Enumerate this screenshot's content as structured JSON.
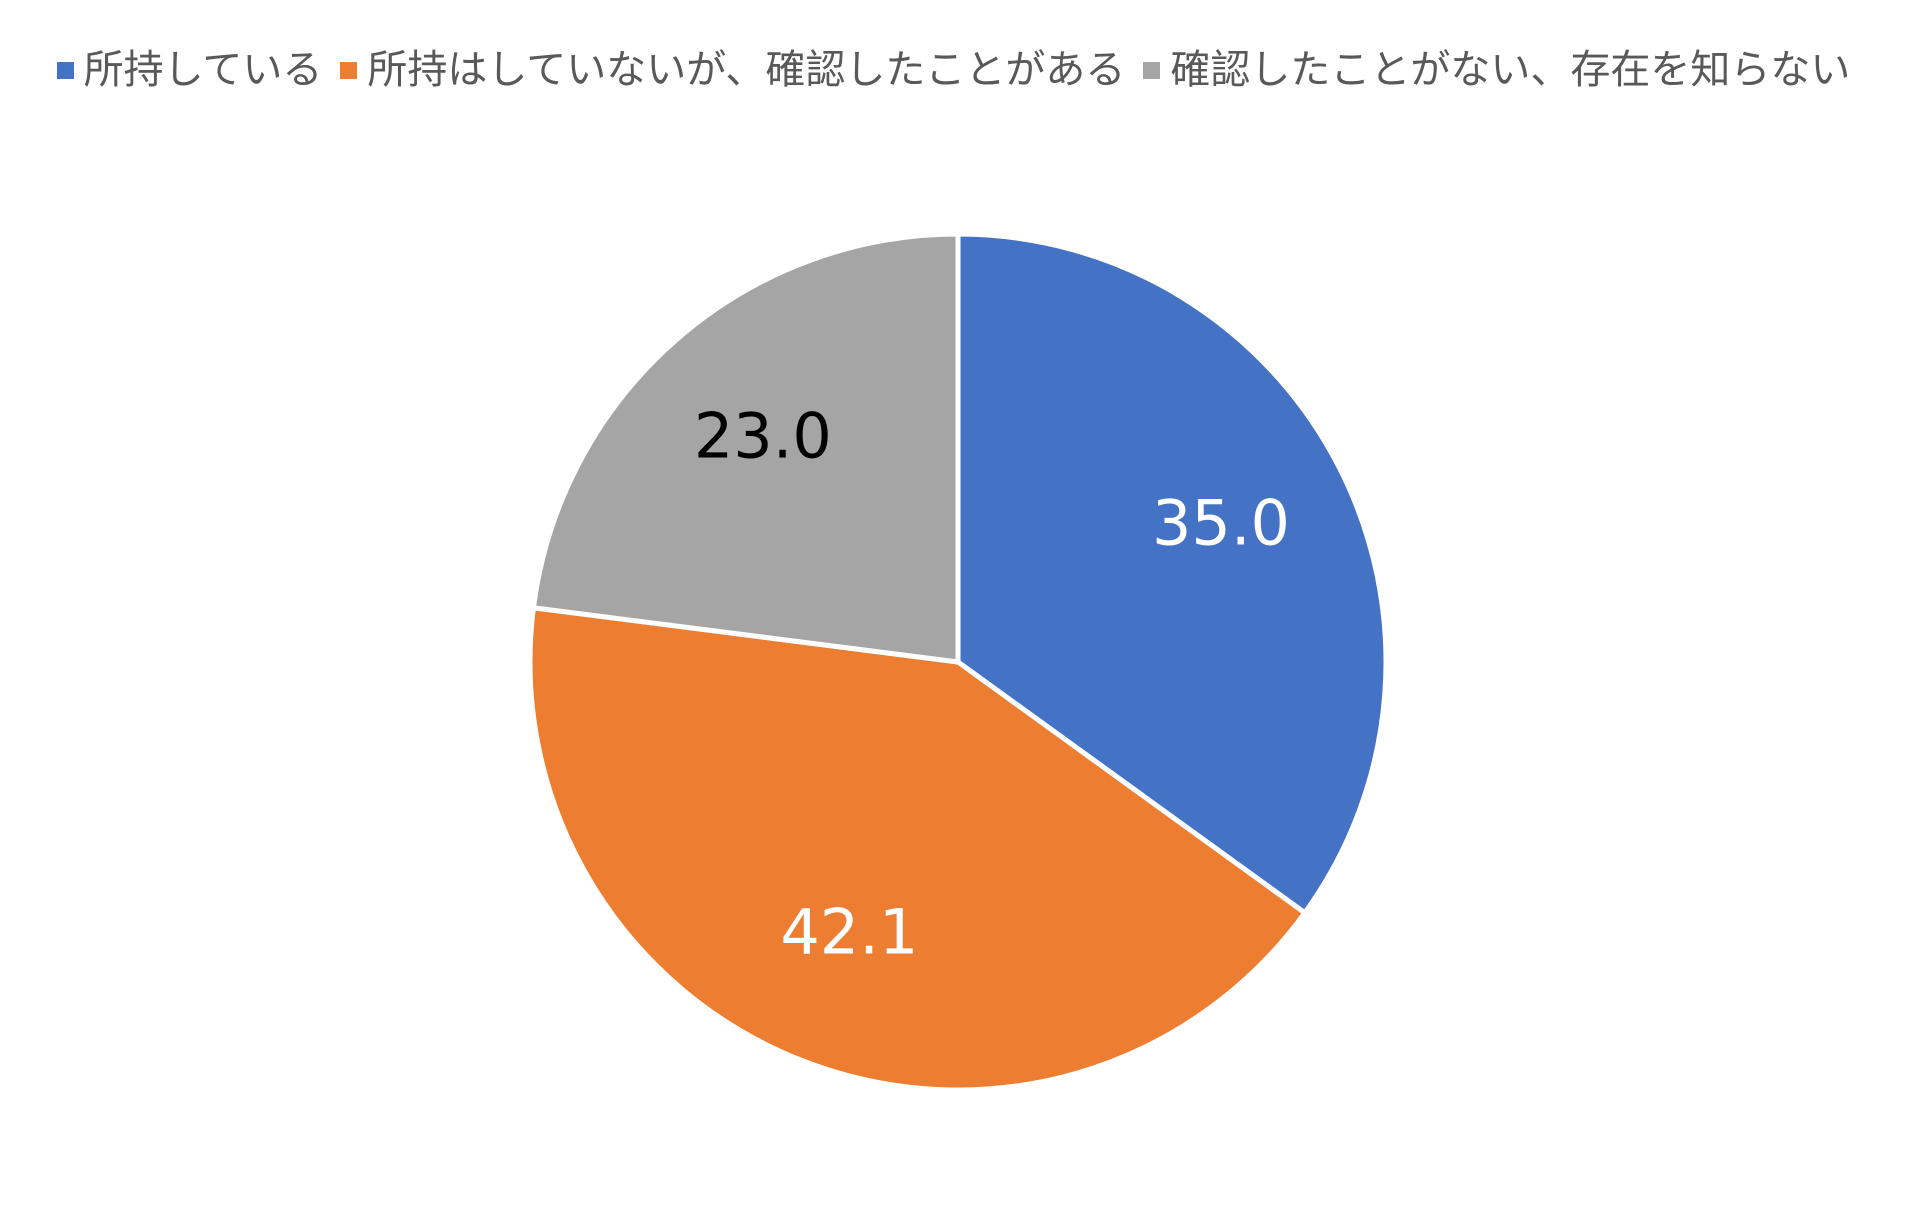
{
  "chart_data": {
    "type": "pie",
    "title": "",
    "legend_placement": "top",
    "series": [
      {
        "name": "所持している",
        "value": 35.0,
        "label": "35.0",
        "color": "#4472C4",
        "label_color": "#FFFFFF"
      },
      {
        "name": "所持はしていないが、確認したことがある",
        "value": 42.1,
        "label": "42.1",
        "color": "#ED7D31",
        "label_color": "#FFFFFF"
      },
      {
        "name": "確認したことがない、存在を知らない",
        "value": 23.0,
        "label": "23.0",
        "color": "#A5A5A5",
        "label_color": "#000000"
      }
    ]
  }
}
